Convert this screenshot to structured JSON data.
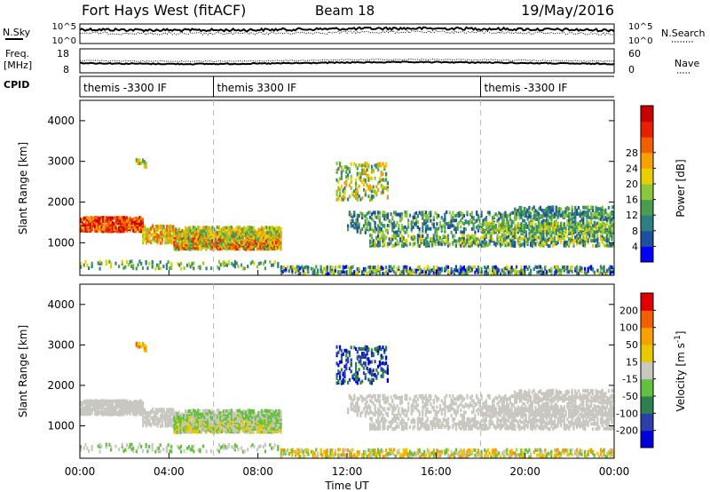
{
  "header": {
    "station": "Fort Hays West (fitACF)",
    "beam": "Beam 18",
    "date": "19/May/2016"
  },
  "strip_nsky": {
    "label": "N.Sky",
    "left_ticks": [
      "10^5",
      "10^0"
    ],
    "right_ticks": [
      "10^5",
      "10^0"
    ],
    "right_label": "N.Search"
  },
  "strip_freq": {
    "label_line1": "Freq.",
    "label_line2": "[MHz]",
    "left_ticks": [
      "18",
      "8"
    ],
    "right_ticks": [
      "60",
      "0"
    ],
    "right_label": "Nave"
  },
  "cpid": {
    "label": "CPID",
    "segments": [
      {
        "name": "themis -3300 IF",
        "start_hr": 0,
        "end_hr": 6
      },
      {
        "name": "themis 3300 IF",
        "start_hr": 6,
        "end_hr": 18
      },
      {
        "name": "themis -3300 IF",
        "start_hr": 18,
        "end_hr": 24
      }
    ]
  },
  "xaxis": {
    "label": "Time UT",
    "ticks": [
      "00:00",
      "04:00",
      "08:00",
      "12:00",
      "16:00",
      "20:00",
      "00:00"
    ]
  },
  "colors": {
    "power_scale": [
      "#0000ff",
      "#1f4fa0",
      "#2e7f80",
      "#4a9c50",
      "#8cc63a",
      "#e8d000",
      "#f7a000",
      "#f06000",
      "#e82000",
      "#c80000"
    ],
    "velocity_scale": [
      "#0000dd",
      "#2a3fa8",
      "#2d8050",
      "#63c040",
      "#c8c8c0",
      "#e8c800",
      "#f7a000",
      "#f06000",
      "#e00000"
    ]
  },
  "chart_data": [
    {
      "type": "heatmap",
      "title": "",
      "ylabel": "Slant Range [km]",
      "xlim": [
        0,
        24
      ],
      "ylim": [
        200,
        4500
      ],
      "yticks": [
        "1000",
        "2000",
        "3000",
        "4000"
      ],
      "colorbar": {
        "label": "Power [dB]",
        "ticks": [
          "4",
          "8",
          "12",
          "16",
          "20",
          "24",
          "28"
        ],
        "range": [
          0,
          30
        ]
      }
    },
    {
      "type": "heatmap",
      "title": "",
      "ylabel": "Slant Range [km]",
      "xlim": [
        0,
        24
      ],
      "ylim": [
        200,
        4500
      ],
      "yticks": [
        "1000",
        "2000",
        "3000",
        "4000"
      ],
      "colorbar": {
        "label": "Velocity [m s^-1]",
        "ticks": [
          "200",
          "100",
          "50",
          "15",
          "-15",
          "-50",
          "-100",
          "-200"
        ]
      }
    }
  ]
}
